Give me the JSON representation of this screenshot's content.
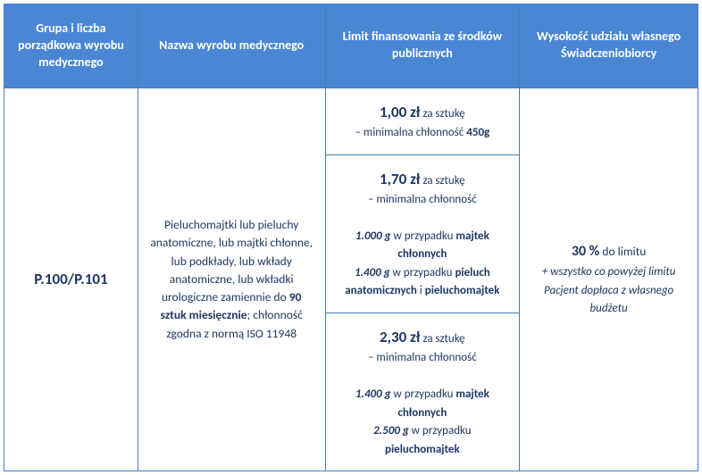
{
  "headers": {
    "col1": "Grupa i liczba porządkowa wyrobu medycznego",
    "col2": "Nazwa wyrobu medycznego",
    "col3": "Limit finansowania ze środków publicznych",
    "col4": "Wysokość udziału własnego Świadczeniobiorcy"
  },
  "row": {
    "code": "P.100/P.101",
    "product_pre": "Pieluchomajtki lub pieluchy anatomiczne, lub majtki chłonne, lub podkłady, lub wkłady anatomiczne, lub wkładki urologiczne zamiennie do ",
    "product_bold": "90 sztuk miesięcznie",
    "product_post": "; chłonność zgodna z normą ISO 11948",
    "limits": [
      {
        "price": "1,00 zł",
        "per": " za sztukę",
        "min_label": "– minimalna chłonność",
        "min_value": "450g",
        "details": []
      },
      {
        "price": "1,70 zł",
        "per": " za sztukę",
        "min_label": "– minimalna chłonność",
        "min_value": "",
        "details": [
          {
            "value": "1.000 g",
            "mid": " w przypadku ",
            "product": "majtek chłonnych"
          },
          {
            "value": "1.400 g",
            "mid": " w przypadku ",
            "product": "pieluch anatomicznych",
            "suffix": " i ",
            "product2": "pieluchomajtek"
          }
        ]
      },
      {
        "price": "2,30 zł",
        "per": " za sztukę",
        "min_label": "– minimalna chłonność",
        "min_value": "",
        "details": [
          {
            "value": "1.400 g",
            "mid": " w przypadku ",
            "product": "majtek chłonnych"
          },
          {
            "value": "2.500 g",
            "mid": " w przypadku ",
            "product": "pieluchomajtek"
          }
        ]
      }
    ],
    "share_pct": "30 %",
    "share_suffix": " do limitu",
    "share_note": "+ wszystko co powyżej limitu Pacjent dopłaca z własnego budżetu"
  },
  "colors": {
    "header_bg": "#4a86d4",
    "header_text": "#ffffff",
    "body_text": "#1f3864",
    "border": "#4a7bc0"
  }
}
